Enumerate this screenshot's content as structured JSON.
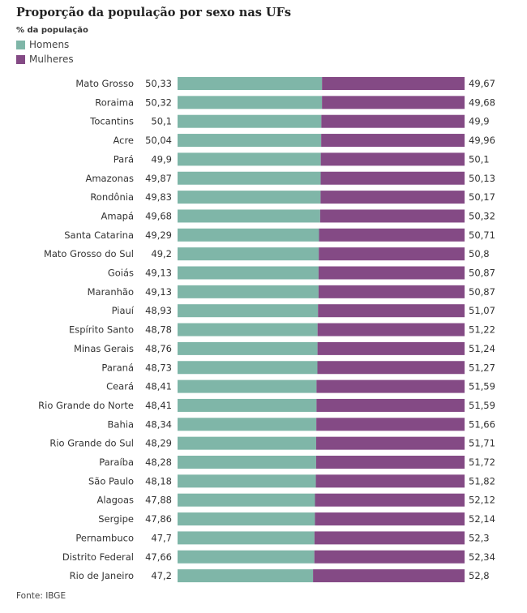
{
  "chart_data": {
    "type": "bar",
    "orientation": "horizontal",
    "stacked": true,
    "title": "Proporção da população por sexo nas UFs",
    "subtitle": "% da população",
    "source": "Fonte: IBGE",
    "legend_position": "top-left",
    "categories": [
      "Mato Grosso",
      "Roraima",
      "Tocantins",
      "Acre",
      "Pará",
      "Amazonas",
      "Rondônia",
      "Amapá",
      "Santa Catarina",
      "Mato Grosso do Sul",
      "Goiás",
      "Maranhão",
      "Piauí",
      "Espírito Santo",
      "Minas Gerais",
      "Paraná",
      "Ceará",
      "Rio Grande do Norte",
      "Bahia",
      "Rio Grande do Sul",
      "Paraíba",
      "São Paulo",
      "Alagoas",
      "Sergipe",
      "Pernambuco",
      "Distrito Federal",
      "Rio de Janeiro"
    ],
    "series": [
      {
        "name": "Homens",
        "color": "#7fb6a8",
        "values": [
          50.33,
          50.32,
          50.1,
          50.04,
          49.9,
          49.87,
          49.83,
          49.68,
          49.29,
          49.2,
          49.13,
          49.13,
          48.93,
          48.78,
          48.76,
          48.73,
          48.41,
          48.41,
          48.34,
          48.29,
          48.28,
          48.18,
          47.88,
          47.86,
          47.7,
          47.66,
          47.2
        ],
        "labels": [
          "50,33",
          "50,32",
          "50,1",
          "50,04",
          "49,9",
          "49,87",
          "49,83",
          "49,68",
          "49,29",
          "49,2",
          "49,13",
          "49,13",
          "48,93",
          "48,78",
          "48,76",
          "48,73",
          "48,41",
          "48,41",
          "48,34",
          "48,29",
          "48,28",
          "48,18",
          "47,88",
          "47,86",
          "47,7",
          "47,66",
          "47,2"
        ]
      },
      {
        "name": "Mulheres",
        "color": "#844a85",
        "values": [
          49.67,
          49.68,
          49.9,
          49.96,
          50.1,
          50.13,
          50.17,
          50.32,
          50.71,
          50.8,
          50.87,
          50.87,
          51.07,
          51.22,
          51.24,
          51.27,
          51.59,
          51.59,
          51.66,
          51.71,
          51.72,
          51.82,
          52.12,
          52.14,
          52.3,
          52.34,
          52.8
        ],
        "labels": [
          "49,67",
          "49,68",
          "49,9",
          "49,96",
          "50,1",
          "50,13",
          "50,17",
          "50,32",
          "50,71",
          "50,8",
          "50,87",
          "50,87",
          "51,07",
          "51,22",
          "51,24",
          "51,27",
          "51,59",
          "51,59",
          "51,66",
          "51,71",
          "51,72",
          "51,82",
          "52,12",
          "52,14",
          "52,3",
          "52,34",
          "52,8"
        ]
      }
    ],
    "xlim": [
      0,
      100
    ]
  }
}
